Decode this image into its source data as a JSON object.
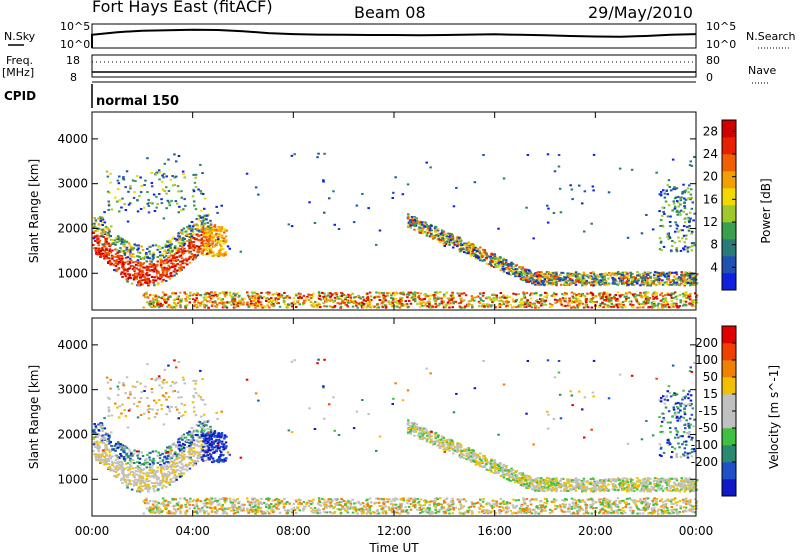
{
  "header": {
    "station": "Fort Hays East (fitACF)",
    "beam": "Beam 08",
    "date": "29/May/2010"
  },
  "summary_panel": {
    "left_label_top": "N.Sky",
    "left_tick_top": "10^5",
    "left_tick_bottom": "10^0",
    "right_label_top": "N.Search",
    "right_tick_top": "10^5",
    "right_tick_bottom": "10^0",
    "freq_label": "Freq.",
    "freq_unit": "[MHz]",
    "freq_ticks": [
      "18",
      "8"
    ],
    "nave_label": "Nave",
    "nave_ticks": [
      "80",
      "0"
    ],
    "cpid_label": "CPID",
    "cpid_value": "normal 150",
    "noise_sky": [
      0.55,
      0.66,
      0.72,
      0.74,
      0.76,
      0.75,
      0.7,
      0.62,
      0.58,
      0.56,
      0.55,
      0.54,
      0.54,
      0.53,
      0.54,
      0.56,
      0.57,
      0.55,
      0.53,
      0.5,
      0.48,
      0.47,
      0.5,
      0.55,
      0.58
    ]
  },
  "chart_data": [
    {
      "type": "heatmap",
      "name": "power-panel",
      "ylabel": "Slant Range [km]",
      "ylim": [
        180,
        4600
      ],
      "xlim": [
        0,
        24
      ],
      "yticks": [
        "1000",
        "2000",
        "3000",
        "4000"
      ],
      "ytick_values": [
        1000,
        2000,
        3000,
        4000
      ],
      "colorbar": {
        "label": "Power [dB]",
        "ticks": [
          "4",
          "8",
          "12",
          "16",
          "20",
          "24",
          "28"
        ],
        "tick_values": [
          4,
          8,
          12,
          16,
          20,
          24,
          28
        ],
        "range": [
          0,
          30
        ],
        "colors": [
          "#1020e0",
          "#2050b0",
          "#2a7a7a",
          "#3aa050",
          "#a0c828",
          "#f0d800",
          "#f0a000",
          "#f06000",
          "#e82000",
          "#d00000"
        ]
      }
    },
    {
      "type": "heatmap",
      "name": "velocity-panel",
      "ylabel": "Slant Range [km]",
      "ylim": [
        180,
        4600
      ],
      "xlim": [
        0,
        24
      ],
      "yticks": [
        "1000",
        "2000",
        "3000",
        "4000"
      ],
      "ytick_values": [
        1000,
        2000,
        3000,
        4000
      ],
      "colorbar": {
        "label": "Velocity [m s^-1]",
        "ticks": [
          "200",
          "100",
          "50",
          "15",
          "-15",
          "-50",
          "-100",
          "-200"
        ],
        "colors": [
          "#1018c8",
          "#2050c8",
          "#2a8a70",
          "#40c040",
          "#c0c0c0",
          "#c0c0c0",
          "#f0c000",
          "#f08000",
          "#f04000",
          "#e00000"
        ]
      }
    }
  ],
  "x_axis": {
    "label": "Time UT",
    "ticks": [
      "00:00",
      "04:00",
      "08:00",
      "12:00",
      "16:00",
      "20:00",
      "00:00"
    ],
    "tick_values": [
      0,
      4,
      8,
      12,
      16,
      20,
      24
    ]
  }
}
